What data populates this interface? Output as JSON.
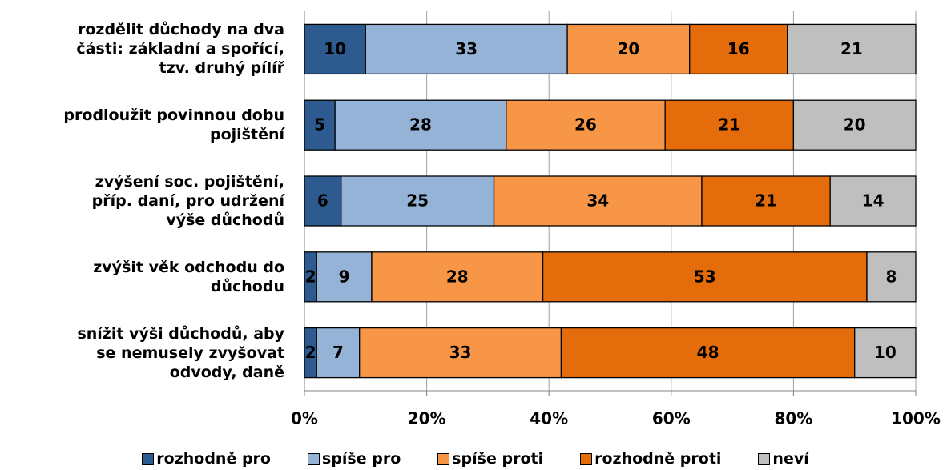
{
  "chart_data": {
    "type": "stacked-barh",
    "categories": [
      "rozdělit důchody na dva\nčásti: základní a spořící,\ntzv. druhý pílíř",
      "prodloužit povinnou dobu\npojištění",
      "zvýšení soc. pojištění,\npříp. daní, pro udržení\nvýše důchodů",
      "zvýšit věk odchodu do\ndůchodu",
      "snížit výši důchodů, aby\nse nemusely zvyšovat\nodvody, daně"
    ],
    "series": [
      {
        "name": "rozhodně pro",
        "color": "#2e5b8f",
        "values": [
          10,
          5,
          6,
          2,
          2
        ]
      },
      {
        "name": "spíše pro",
        "color": "#95b3d7",
        "values": [
          33,
          28,
          25,
          9,
          7
        ]
      },
      {
        "name": "spíše proti",
        "color": "#f79646",
        "values": [
          20,
          26,
          34,
          28,
          33
        ]
      },
      {
        "name": "rozhodně proti",
        "color": "#e46c0a",
        "values": [
          16,
          21,
          21,
          53,
          48
        ]
      },
      {
        "name": "neví",
        "color": "#bfbfbf",
        "values": [
          21,
          20,
          14,
          8,
          10
        ]
      }
    ],
    "xlim": [
      0,
      100
    ],
    "xticks": [
      {
        "value": 0,
        "label": "0%"
      },
      {
        "value": 20,
        "label": "20%"
      },
      {
        "value": 40,
        "label": "40%"
      },
      {
        "value": 60,
        "label": "60%"
      },
      {
        "value": 80,
        "label": "80%"
      },
      {
        "value": 100,
        "label": "100%"
      }
    ],
    "grid": true
  }
}
